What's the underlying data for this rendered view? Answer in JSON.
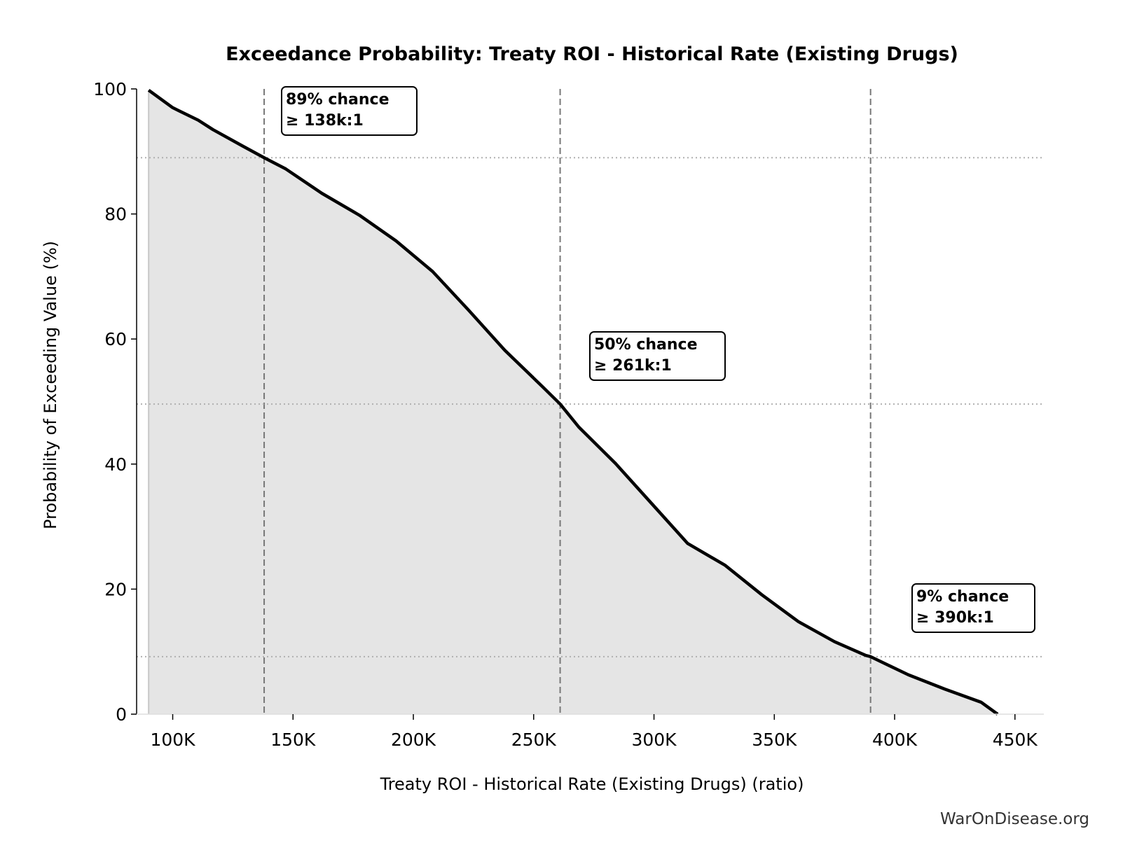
{
  "chart_data": {
    "type": "area",
    "title": "Exceedance Probability: Treaty ROI - Historical Rate (Existing Drugs)",
    "xlabel": "Treaty ROI - Historical Rate (Existing Drugs) (ratio)",
    "ylabel": "Probability of Exceeding Value (%)",
    "xlim": [
      85000,
      462000
    ],
    "ylim": [
      0,
      100
    ],
    "x_ticks": [
      100000,
      150000,
      200000,
      250000,
      300000,
      350000,
      400000,
      450000
    ],
    "x_tick_labels": [
      "100K",
      "150K",
      "200K",
      "250K",
      "300K",
      "350K",
      "400K",
      "450K"
    ],
    "y_ticks": [
      0,
      20,
      40,
      60,
      80,
      100
    ],
    "y_tick_labels": [
      "0",
      "20",
      "40",
      "60",
      "80",
      "100"
    ],
    "grid": false,
    "series": [
      {
        "x": [
          90000,
          100000,
          110600,
          116700,
          128900,
          138000,
          147000,
          162000,
          177600,
          192800,
          208000,
          223000,
          238000,
          253600,
          261000,
          268800,
          284000,
          299000,
          314000,
          329600,
          344800,
          360000,
          375000,
          388000,
          390000,
          405700,
          420900,
          436000,
          442800
        ],
        "y": [
          99.8,
          97.0,
          95.0,
          93.5,
          90.9,
          89.0,
          87.2,
          83.3,
          79.8,
          75.7,
          70.8,
          64.6,
          58.2,
          52.4,
          49.6,
          45.9,
          40.1,
          33.7,
          27.3,
          23.8,
          19.1,
          14.8,
          11.6,
          9.4,
          9.2,
          6.3,
          4.0,
          1.9,
          0
        ]
      }
    ],
    "reference_lines": [
      {
        "x": 138000,
        "y": 89,
        "label_line1": "89% chance",
        "label_line2": "≥ 138k:1"
      },
      {
        "x": 261000,
        "y": 49.6,
        "label_line1": "50% chance",
        "label_line2": "≥ 261k:1"
      },
      {
        "x": 390000,
        "y": 9.2,
        "label_line1": "9% chance",
        "label_line2": "≥ 390k:1"
      }
    ],
    "colors": {
      "line": "#000000",
      "fill": "#e5e5e5",
      "ref_line": "#777777",
      "hline": "#b0b0b0"
    }
  },
  "watermark": "WarOnDisease.org"
}
